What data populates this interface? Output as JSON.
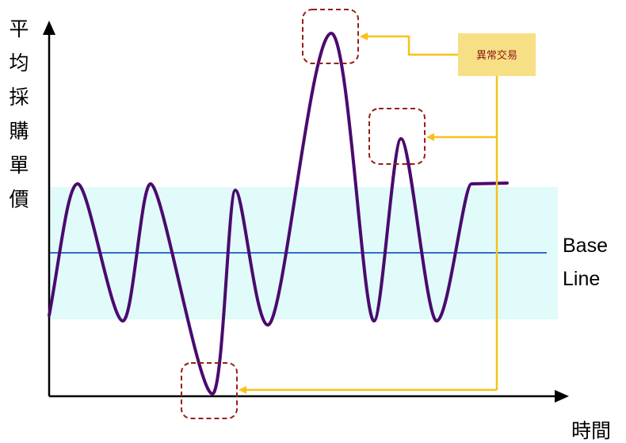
{
  "y_axis_label_chars": [
    "平",
    "均",
    "採",
    "購",
    "單",
    "價"
  ],
  "x_axis_label": "時間",
  "baseline_label_lines": [
    "Base",
    "Line"
  ],
  "callout": {
    "text": "異常交易"
  },
  "colors": {
    "curve": "#4b0a6e",
    "band": "#e0fbfa",
    "baseline": "#2f6fc9",
    "axis": "#000000",
    "dashed_box": "#9b1c12",
    "connector": "#f5c21a",
    "callout_fill": "#f7df86"
  }
}
